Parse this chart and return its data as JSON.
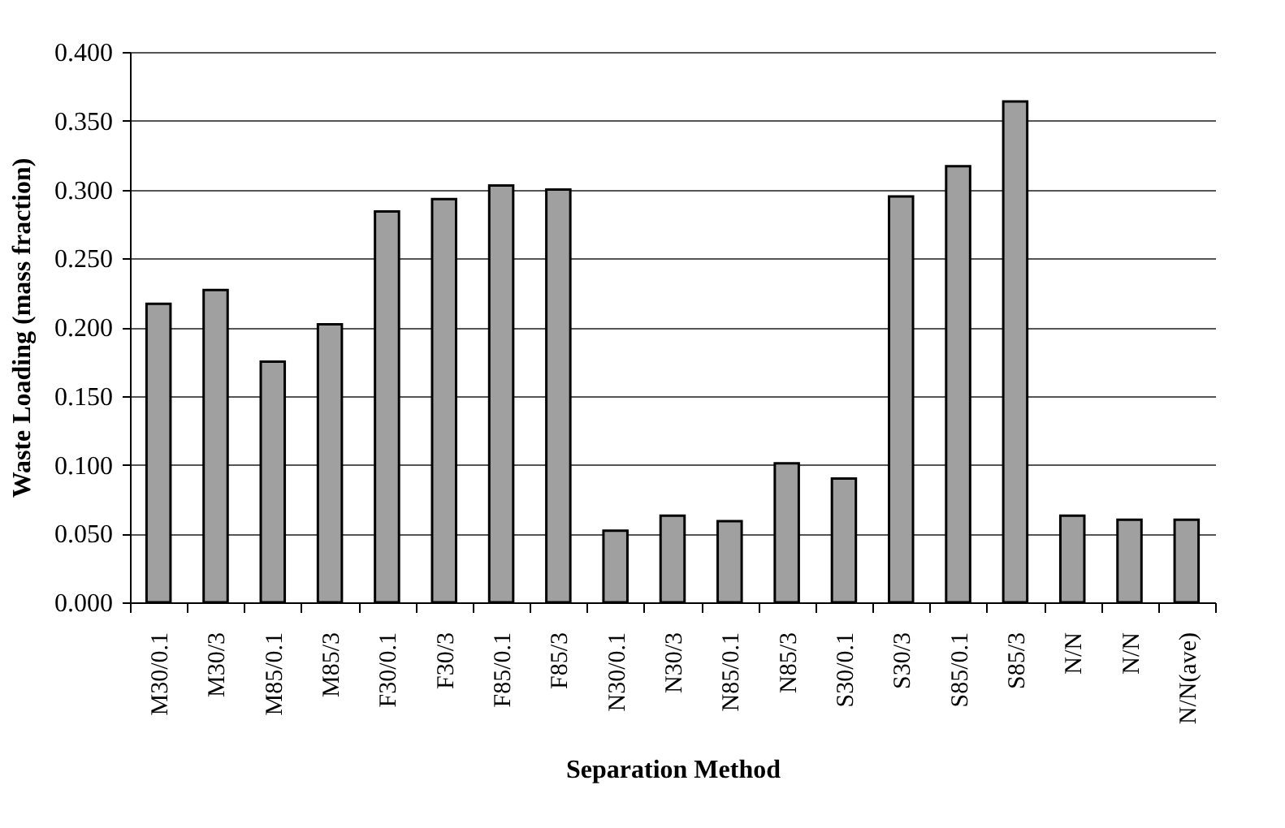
{
  "chart_data": {
    "type": "bar",
    "xlabel": "Separation Method",
    "ylabel": "Waste Loading (mass fraction)",
    "categories": [
      "M30/0.1",
      "M30/3",
      "M85/0.1",
      "M85/3",
      "F30/0.1",
      "F30/3",
      "F85/0.1",
      "F85/3",
      "N30/0.1",
      "N30/3",
      "N85/0.1",
      "N85/3",
      "S30/0.1",
      "S30/3",
      "S85/0.1",
      "S85/3",
      "N/N",
      "N/N",
      "N/N(ave)"
    ],
    "values": [
      0.217,
      0.227,
      0.175,
      0.202,
      0.284,
      0.293,
      0.303,
      0.3,
      0.052,
      0.063,
      0.059,
      0.101,
      0.09,
      0.295,
      0.317,
      0.364,
      0.063,
      0.06,
      0.06
    ],
    "color": "#a0a0a0",
    "ylim": [
      0,
      0.4
    ],
    "yticks": [
      {
        "value": 0,
        "label": "0.000"
      },
      {
        "value": 0.05,
        "label": "0.050"
      },
      {
        "value": 0.1,
        "label": "0.100"
      },
      {
        "value": 0.15,
        "label": "0.150"
      },
      {
        "value": 0.2,
        "label": "0.200"
      },
      {
        "value": 0.25,
        "label": "0.250"
      },
      {
        "value": 0.3,
        "label": "0.300"
      },
      {
        "value": 0.35,
        "label": "0.350"
      },
      {
        "value": 0.4,
        "label": "0.400"
      }
    ],
    "grid": "y"
  }
}
